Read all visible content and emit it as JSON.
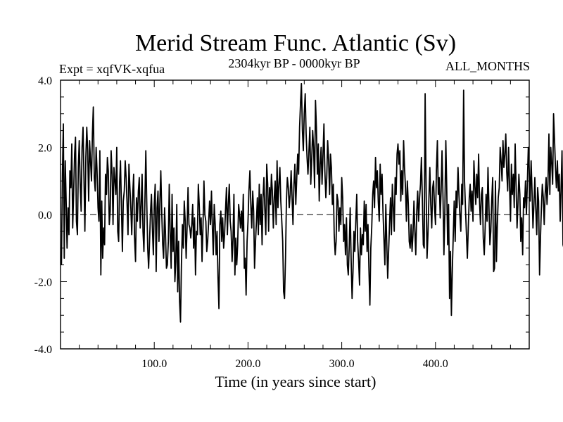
{
  "chart_data": {
    "type": "line",
    "title": "Merid Stream Func. Atlantic (Sv)",
    "subtitle_left": "Expt = xqfVK-xqfua",
    "subtitle_center": "2304kyr BP - 0000kyr BP",
    "subtitle_right": "ALL_MONTHS",
    "xlabel": "Time (in years since start)",
    "ylabel": "",
    "xlim": [
      0,
      500
    ],
    "ylim": [
      -4,
      4
    ],
    "x_ticks": [
      100,
      200,
      300,
      400
    ],
    "x_tick_labels": [
      "100.0",
      "200.0",
      "300.0",
      "400.0"
    ],
    "y_ticks": [
      -4,
      -2,
      0,
      2,
      4
    ],
    "y_tick_labels": [
      "-4.0",
      "-2.0",
      "0.0",
      "2.0",
      "4.0"
    ],
    "zero_line": "dashed",
    "series": [
      {
        "name": "Atlantic MSF anomaly",
        "x_start": 1,
        "x_step": 1,
        "values": [
          -1.5,
          1.2,
          2.7,
          -1.3,
          1.6,
          0.4,
          -1.0,
          0.2,
          -0.6,
          1.3,
          0.8,
          2.1,
          -0.4,
          0.6,
          1.8,
          2.3,
          -0.2,
          -0.6,
          1.4,
          2.2,
          0.9,
          0.1,
          2.0,
          2.6,
          1.1,
          -0.5,
          1.7,
          2.6,
          1.9,
          0.4,
          2.2,
          1.6,
          1.0,
          2.4,
          3.2,
          1.1,
          0.7,
          2.0,
          1.3,
          0.2,
          -0.2,
          1.9,
          -1.8,
          0.4,
          -1.3,
          -0.4,
          -0.9,
          1.2,
          0.6,
          1.7,
          1.3,
          -0.3,
          0.1,
          1.9,
          1.2,
          -0.3,
          1.4,
          1.0,
          0.6,
          2.0,
          -0.5,
          -0.8,
          0.9,
          1.6,
          0.2,
          -1.1,
          0.4,
          0.7,
          1.6,
          1.1,
          0.3,
          -0.6,
          1.5,
          0.8,
          0.2,
          -0.6,
          0.6,
          1.2,
          -0.7,
          -1.4,
          0.5,
          -0.2,
          0.7,
          1.1,
          -0.4,
          0.3,
          1.2,
          -0.5,
          -1.1,
          0.4,
          1.9,
          0.4,
          -1.0,
          -1.6,
          -0.8,
          0.1,
          0.6,
          -0.4,
          -1.2,
          0.3,
          0.9,
          -1.7,
          0.2,
          0.7,
          -0.8,
          0.4,
          1.3,
          0.0,
          -0.9,
          -1.3,
          0.2,
          -0.6,
          -1.6,
          -1.5,
          -0.8,
          0.9,
          -0.5,
          -1.6,
          0.6,
          -1.1,
          -0.4,
          -2.0,
          -1.4,
          0.3,
          -2.3,
          -0.8,
          -2.6,
          -3.2,
          -1.5,
          -0.3,
          -1.0,
          0.4,
          -0.2,
          -1.3,
          -0.4,
          0.8,
          -0.3,
          -0.4,
          -0.7,
          -0.3,
          0.3,
          -1.0,
          -0.1,
          -1.8,
          -0.5,
          -0.6,
          0.9,
          0.3,
          -0.6,
          -0.1,
          -1.4,
          -0.3,
          1.0,
          0.0,
          -0.2,
          -1.1,
          -0.8,
          -0.2,
          0.4,
          -0.3,
          0.7,
          -0.4,
          -1.2,
          0.3,
          -0.3,
          -1.2,
          -0.5,
          -1.9,
          -2.8,
          -0.3,
          0.1,
          -0.8,
          -0.1,
          -1.0,
          -0.6,
          0.1,
          0.8,
          -0.6,
          0.3,
          0.9,
          -0.2,
          -0.5,
          -1.4,
          -0.7,
          0.6,
          -1.8,
          -0.7,
          -1.5,
          -0.9,
          0.3,
          0.0,
          -0.4,
          0.1,
          -0.5,
          0.6,
          -1.6,
          -1.3,
          -2.4,
          -0.8,
          -0.2,
          0.7,
          1.3,
          0.3,
          -0.4,
          0.7,
          0.1,
          -1.6,
          -0.8,
          -0.2,
          0.5,
          -0.6,
          0.9,
          -0.3,
          0.6,
          -0.9,
          0.5,
          1.1,
          0.1,
          -0.6,
          1.5,
          0.9,
          -0.5,
          0.8,
          0.3,
          1.2,
          0.7,
          -0.4,
          0.5,
          1.0,
          -0.3,
          1.6,
          0.2,
          0.9,
          1.4,
          0.4,
          -0.2,
          -0.8,
          -2.3,
          -2.5,
          -1.3,
          0.4,
          1.1,
          0.8,
          0.2,
          0.6,
          1.3,
          0.5,
          -0.3,
          0.9,
          1.5,
          0.3,
          1.1,
          1.8,
          1.2,
          2.6,
          3.3,
          3.9,
          2.5,
          1.9,
          3.0,
          3.6,
          2.4,
          1.7,
          1.2,
          1.9,
          2.6,
          0.9,
          1.7,
          2.5,
          2.0,
          0.8,
          3.4,
          2.6,
          1.2,
          2.1,
          0.4,
          1.5,
          2.0,
          0.9,
          1.8,
          2.7,
          1.3,
          0.5,
          1.1,
          2.2,
          1.6,
          0.6,
          1.8,
          1.4,
          0.3,
          0.9,
          -0.6,
          -1.2,
          -0.8,
          0.6,
          0.4,
          -0.5,
          0.2,
          -0.3,
          1.1,
          0.5,
          -0.8,
          -0.3,
          -1.2,
          -0.1,
          -1.5,
          -1.8,
          -0.9,
          0.2,
          -1.3,
          -2.5,
          -1.7,
          -0.5,
          -1.1,
          -0.2,
          0.6,
          -0.8,
          -1.4,
          -2.1,
          -0.4,
          -1.2,
          -0.6,
          -0.9,
          0.4,
          -0.5,
          0.3,
          -1.1,
          -0.3,
          -1.6,
          -2.7,
          -1.0,
          -0.4,
          0.6,
          1.0,
          0.2,
          1.7,
          0.8,
          1.3,
          0.4,
          -0.2,
          1.5,
          0.6,
          1.2,
          0.1,
          -0.7,
          -1.5,
          0.3,
          -0.8,
          -1.9,
          -1.1,
          -0.3,
          0.5,
          -0.6,
          0.9,
          0.2,
          -0.5,
          1.1,
          0.6,
          1.8,
          2.1,
          1.5,
          1.9,
          0.4,
          1.3,
          0.6,
          2.2,
          1.4,
          0.8,
          -0.2,
          1.0,
          0.3,
          -0.8,
          -1.0,
          -0.3,
          -1.1,
          -0.6,
          0.4,
          -0.5,
          -1.2,
          0.1,
          0.7,
          -0.2,
          0.5,
          0.9,
          1.7,
          0.4,
          -0.9,
          -1.0,
          3.6,
          0.8,
          -1.3,
          -0.6,
          0.5,
          1.4,
          0.3,
          -0.4,
          0.8,
          1.0,
          0.2,
          -0.3,
          1.3,
          2.2,
          0.6,
          1.1,
          -0.1,
          0.7,
          1.9,
          0.5,
          -1.2,
          0.1,
          2.2,
          0.8,
          -0.9,
          0.3,
          -2.5,
          -1.1,
          -3.0,
          -1.6,
          -0.6,
          0.4,
          -0.8,
          0.7,
          0.2,
          1.4,
          0.6,
          0.0,
          -0.5,
          0.9,
          0.3,
          3.7,
          1.0,
          0.2,
          -0.6,
          -1.3,
          -0.4,
          0.5,
          0.9,
          0.1,
          0.7,
          -0.2,
          1.6,
          0.9,
          0.3,
          1.2,
          0.5,
          1.8,
          0.4,
          -0.3,
          0.6,
          0.8,
          -0.7,
          -1.2,
          -0.4,
          0.6,
          -0.2,
          1.4,
          0.3,
          -0.9,
          -0.5,
          0.4,
          1.1,
          -1.7,
          -1.6,
          1.0,
          -1.4,
          -0.3,
          0.5,
          0.8,
          2.0,
          1.6,
          1.0,
          2.2,
          1.4,
          1.8,
          2.4,
          1.3,
          0.7,
          2.0,
          0.9,
          -0.2,
          1.5,
          0.6,
          1.2,
          0.2,
          2.1,
          0.8,
          -0.4,
          0.3,
          1.2,
          0.6,
          -0.8,
          -0.1,
          -1.2,
          0.5,
          0.2,
          1.0,
          0.0,
          0.9,
          2.0,
          1.3,
          0.4,
          1.6,
          0.7,
          -0.4,
          0.3,
          1.1,
          0.2,
          -0.6,
          0.8,
          0.4,
          -1.8,
          -0.7,
          0.2,
          0.9,
          0.5,
          -0.3,
          0.6,
          1.1,
          0.3,
          0.9,
          2.4,
          0.6,
          2.0,
          1.5,
          0.9,
          3.0,
          2.2,
          1.4,
          0.8,
          1.6,
          0.7,
          1.2,
          -0.2,
          0.8,
          1.9,
          -0.9,
          -1.0,
          0.3,
          -0.3,
          0.4,
          -0.7,
          2.4,
          1.2,
          -0.4,
          -1.7,
          0.4,
          0.9,
          1.4,
          0.6,
          1.0
        ]
      }
    ]
  }
}
